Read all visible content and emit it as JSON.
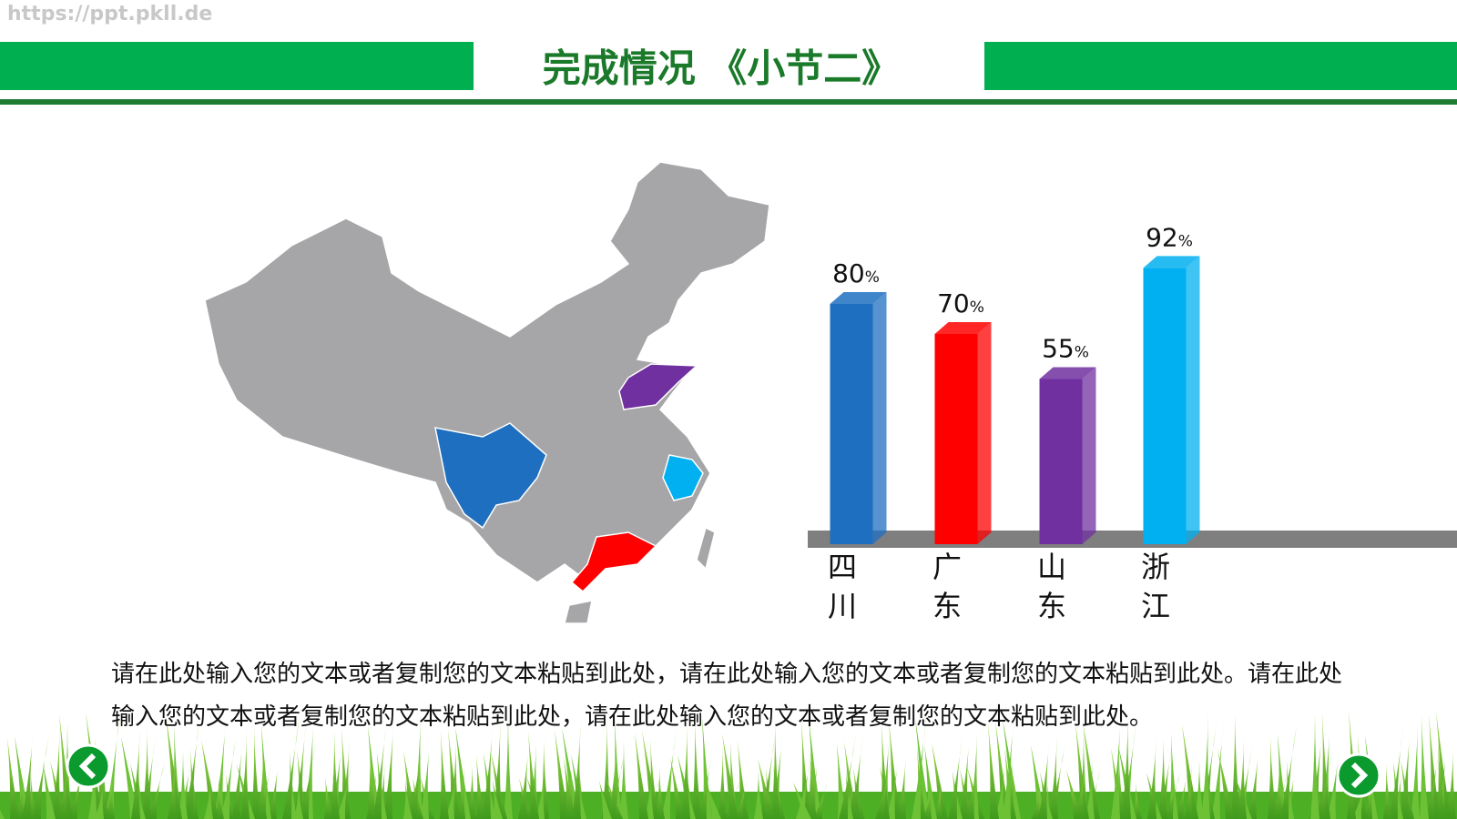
{
  "watermark": "https://ppt.pkll.de",
  "title": "完成情况 《小节二》",
  "chart_data": {
    "type": "bar3d",
    "categories": [
      "四川",
      "广东",
      "山东",
      "浙江"
    ],
    "values": [
      80,
      70,
      55,
      92
    ],
    "value_labels": [
      "80%",
      "70%",
      "55%",
      "92%"
    ],
    "colors": [
      "#1f6fc0",
      "#ff0000",
      "#7030a0",
      "#00b0f0"
    ],
    "ylim": [
      0,
      100
    ]
  },
  "body": "请在此处输入您的文本或者复制您的文本粘贴到此处，请在此处输入您的文本或者复制您的文本粘贴到此处。请在此处输入您的文本或者复制您的文本粘贴到此处，请在此处输入您的文本或者复制您的文本粘贴到此处。"
}
